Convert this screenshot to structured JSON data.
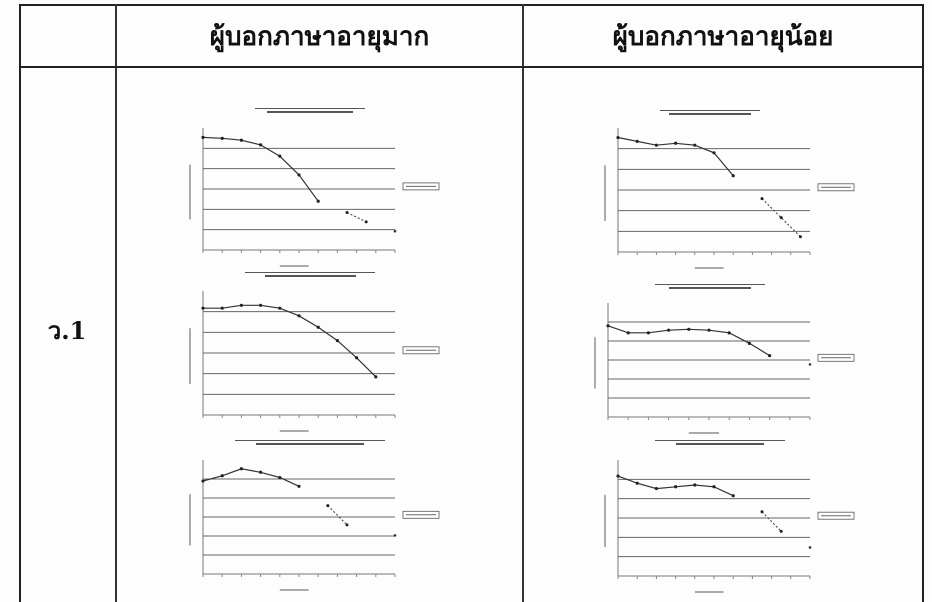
{
  "table": {
    "headers": [
      "",
      "ผู้บอกภาษาอายุมาก",
      "ผู้บอกภาษาอายุน้อย"
    ],
    "row_label": "ว.1"
  },
  "chart_data": [
    {
      "type": "line",
      "panel": "old-1",
      "y": [
        9.0,
        8.95,
        8.85,
        8.6,
        8.0,
        7.0,
        5.6
      ],
      "y2": [
        5.0,
        4.5
      ],
      "lone": 4.0
    },
    {
      "type": "line",
      "panel": "young-1",
      "y": [
        9.0,
        8.8,
        8.6,
        8.7,
        8.6,
        8.2,
        7.0
      ],
      "y2": [
        5.8,
        4.8,
        3.8
      ],
      "lone": null
    },
    {
      "type": "line",
      "panel": "old-2",
      "y": [
        8.6,
        8.6,
        8.75,
        8.75,
        8.6,
        8.2,
        7.6,
        6.9,
        6.0,
        5.0
      ],
      "y2": [],
      "lone": null
    },
    {
      "type": "line",
      "panel": "young-2",
      "y": [
        8.2,
        7.8,
        7.8,
        7.95,
        8.0,
        7.95,
        7.8,
        7.2,
        6.5
      ],
      "y2": [],
      "lone": 6.0
    },
    {
      "type": "line",
      "panel": "old-3",
      "y": [
        8.3,
        8.6,
        9.0,
        8.8,
        8.5,
        8.0
      ],
      "y2": [
        6.9,
        5.8
      ],
      "lone": 5.2
    },
    {
      "type": "line",
      "panel": "young-3",
      "y": [
        8.6,
        8.2,
        7.9,
        8.0,
        8.1,
        8.0,
        7.5
      ],
      "y2": [
        6.6,
        5.5
      ],
      "lone": 4.6
    }
  ]
}
